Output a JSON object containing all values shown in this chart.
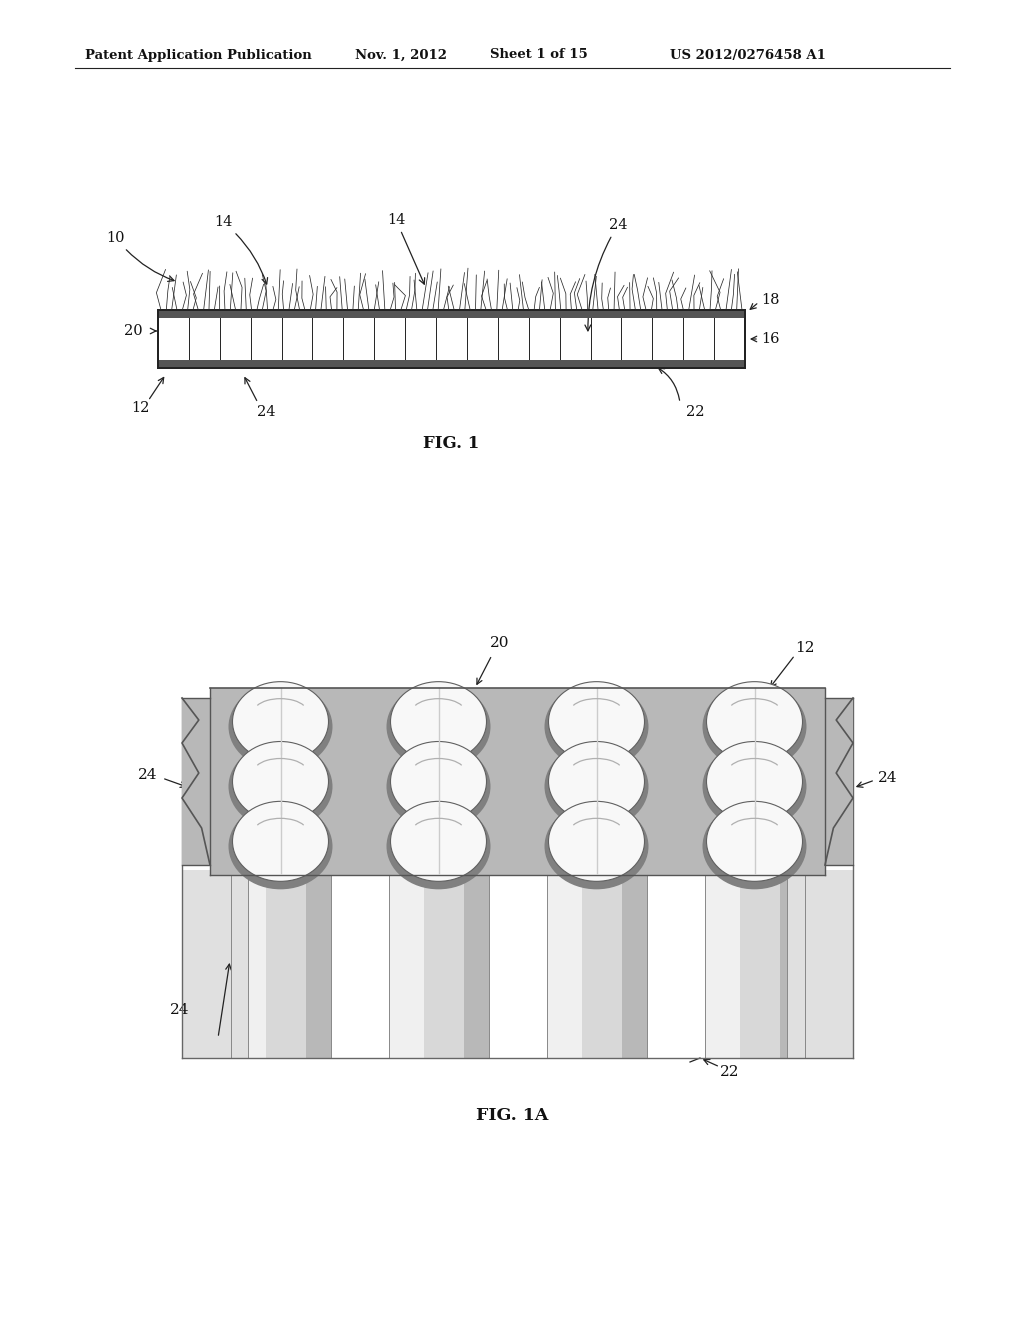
{
  "bg_color": "#ffffff",
  "header_text": "Patent Application Publication",
  "header_date": "Nov. 1, 2012",
  "header_sheet": "Sheet 1 of 15",
  "header_patent": "US 2012/0276458 A1",
  "fig1_label": "FIG. 1",
  "fig1a_label": "FIG. 1A",
  "line_color": "#222222",
  "text_color": "#111111",
  "gray_dark": "#777777",
  "gray_medium": "#aaaaaa",
  "gray_light": "#cccccc",
  "gray_foam": "#b5b5b5",
  "gray_post": "#d8d8d8"
}
